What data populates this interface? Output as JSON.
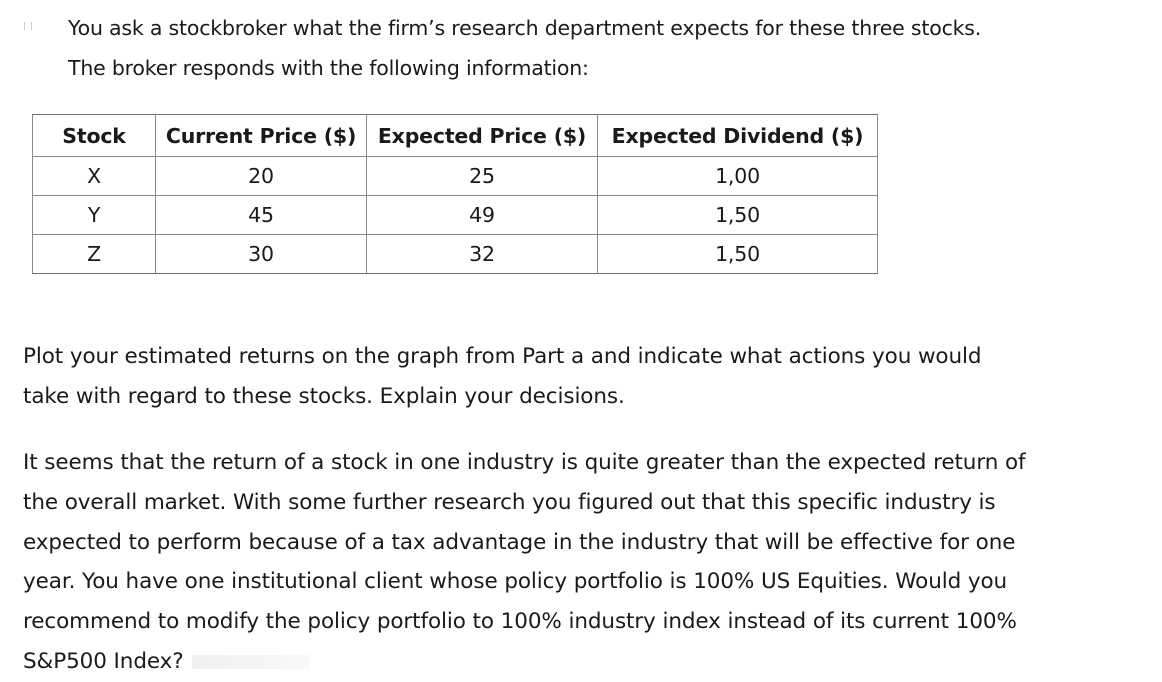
{
  "intro": {
    "line1": "You ask a stockbroker what the firm’s research department expects for these three stocks.",
    "line2": "The broker responds with the following information:"
  },
  "table": {
    "headers": [
      "Stock",
      "Current Price ($)",
      "Expected Price ($)",
      "Expected Dividend ($)"
    ],
    "rows": [
      [
        "X",
        "20",
        "25",
        "1,00"
      ],
      [
        "Y",
        "45",
        "49",
        "1,50"
      ],
      [
        "Z",
        "30",
        "32",
        "1,50"
      ]
    ]
  },
  "question": {
    "line1": "Plot your estimated returns on the graph from Part a and indicate what actions you would",
    "line2": "take with regard to these stocks. Explain your decisions."
  },
  "paragraph": {
    "line1": "It seems that  the return of a stock in one industry is quite greater than the expected return of",
    "line2": "the overall market. With some further research you figured out that this specific industry is",
    "line3": "expected to perform because of a tax advantage in the industry that will be effective for one",
    "line4": "year. You have one institutional client whose policy portfolio is 100% US Equities. Would you",
    "line5": "recommend to modify the policy portfolio to 100% industry index instead of its current 100%",
    "line6": "S&P500 Index?"
  }
}
